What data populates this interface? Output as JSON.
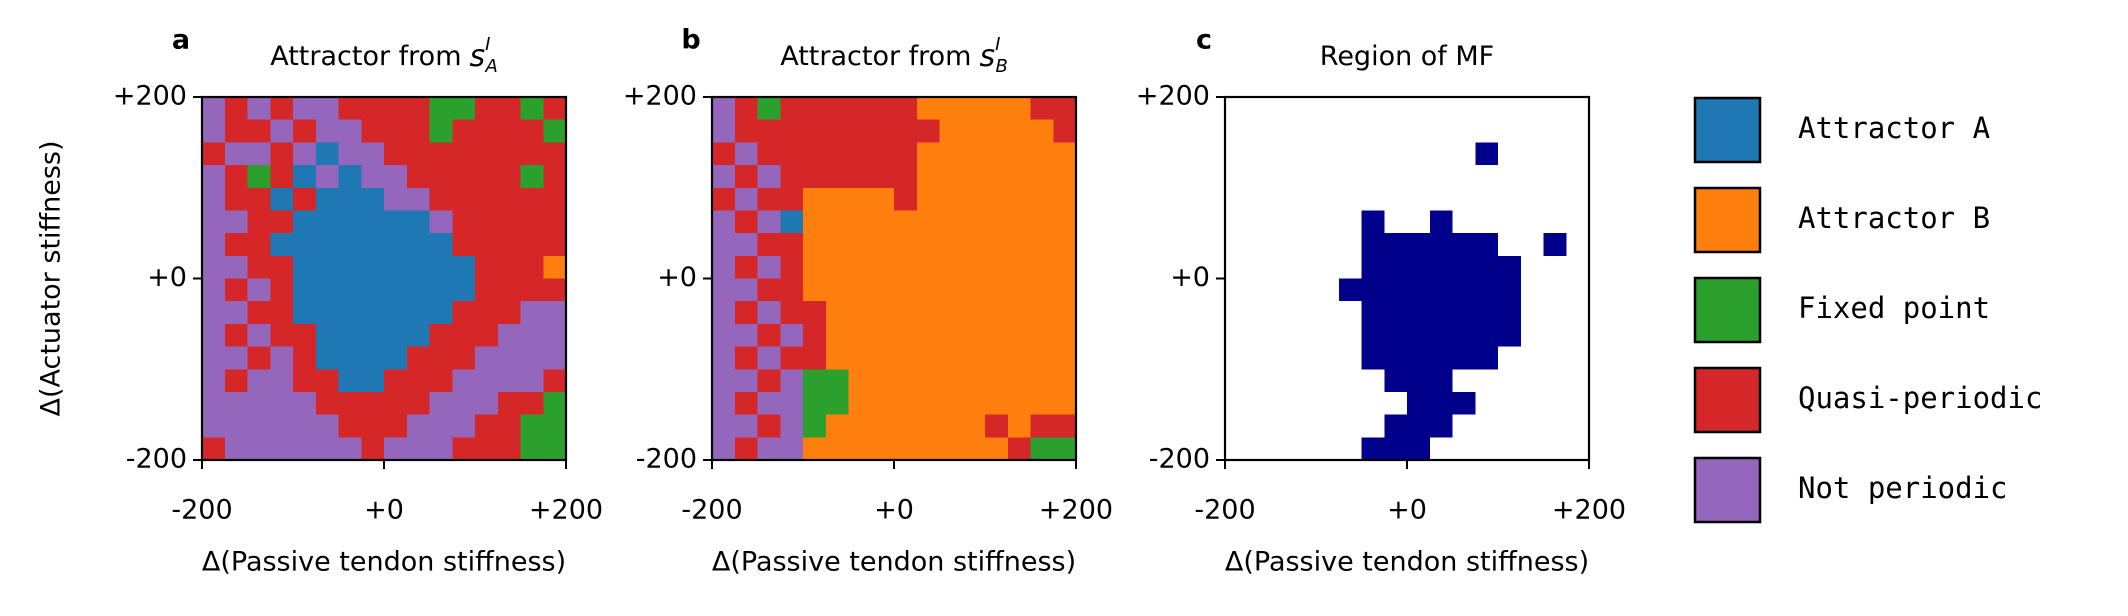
{
  "chart_data": [
    {
      "type": "heatmap",
      "panel_label": "a",
      "title": "Attractor from",
      "title_math": {
        "base": "s",
        "sup": "I",
        "sub": "A"
      },
      "xlabel": "Δ(Passive tendon stiffness)",
      "ylabel": "Δ(Actuator stiffness)",
      "xlim": [
        -200,
        200
      ],
      "ylim": [
        -200,
        200
      ],
      "xticks": [
        -200,
        {
          "value": 0,
          "label": "+0"
        },
        {
          "value": 200,
          "label": "+200"
        }
      ],
      "yticks": [
        -200,
        {
          "value": 0,
          "label": "+0"
        },
        {
          "value": 200,
          "label": "+200"
        }
      ],
      "colors": [
        "#1f77b4",
        "#ff7f0e",
        "#2ca02c",
        "#d62728",
        "#9467bd"
      ],
      "grid": [
        [
          4,
          3,
          4,
          3,
          4,
          4,
          3,
          3,
          3,
          3,
          2,
          2,
          3,
          3,
          2,
          3
        ],
        [
          4,
          3,
          3,
          4,
          3,
          4,
          4,
          3,
          3,
          3,
          2,
          3,
          3,
          3,
          3,
          2
        ],
        [
          3,
          4,
          4,
          3,
          4,
          0,
          4,
          4,
          3,
          3,
          3,
          3,
          3,
          3,
          3,
          3
        ],
        [
          4,
          3,
          2,
          3,
          0,
          4,
          0,
          4,
          4,
          3,
          3,
          3,
          3,
          3,
          2,
          3
        ],
        [
          4,
          3,
          3,
          0,
          3,
          0,
          0,
          0,
          4,
          4,
          3,
          3,
          3,
          3,
          3,
          3
        ],
        [
          4,
          4,
          3,
          3,
          0,
          0,
          0,
          0,
          0,
          0,
          4,
          3,
          3,
          3,
          3,
          3
        ],
        [
          4,
          3,
          3,
          0,
          0,
          0,
          0,
          0,
          0,
          0,
          0,
          3,
          3,
          3,
          3,
          3
        ],
        [
          4,
          4,
          3,
          3,
          0,
          0,
          0,
          0,
          0,
          0,
          0,
          0,
          3,
          3,
          3,
          1
        ],
        [
          4,
          3,
          4,
          3,
          0,
          0,
          0,
          0,
          0,
          0,
          0,
          0,
          3,
          3,
          3,
          3
        ],
        [
          4,
          4,
          3,
          3,
          0,
          0,
          0,
          0,
          0,
          0,
          0,
          3,
          3,
          3,
          4,
          4
        ],
        [
          4,
          3,
          4,
          3,
          3,
          0,
          0,
          0,
          0,
          0,
          3,
          3,
          3,
          4,
          4,
          4
        ],
        [
          4,
          4,
          3,
          4,
          3,
          0,
          0,
          0,
          0,
          3,
          3,
          3,
          4,
          4,
          4,
          4
        ],
        [
          4,
          3,
          4,
          4,
          3,
          3,
          0,
          0,
          3,
          3,
          3,
          4,
          4,
          4,
          4,
          3
        ],
        [
          4,
          4,
          4,
          4,
          4,
          3,
          3,
          3,
          3,
          3,
          4,
          4,
          4,
          3,
          3,
          2
        ],
        [
          4,
          4,
          4,
          4,
          4,
          4,
          3,
          3,
          3,
          4,
          4,
          4,
          3,
          3,
          2,
          2
        ],
        [
          3,
          4,
          4,
          4,
          4,
          4,
          4,
          3,
          4,
          4,
          4,
          3,
          3,
          3,
          2,
          2
        ]
      ]
    },
    {
      "type": "heatmap",
      "panel_label": "b",
      "title": "Attractor from",
      "title_math": {
        "base": "s",
        "sup": "I",
        "sub": "B"
      },
      "xlabel": "Δ(Passive tendon stiffness)",
      "xlim": [
        -200,
        200
      ],
      "ylim": [
        -200,
        200
      ],
      "xticks": [
        -200,
        {
          "value": 0,
          "label": "+0"
        },
        {
          "value": 200,
          "label": "+200"
        }
      ],
      "yticks": [
        -200,
        {
          "value": 0,
          "label": "+0"
        },
        {
          "value": 200,
          "label": "+200"
        }
      ],
      "colors": [
        "#1f77b4",
        "#ff7f0e",
        "#2ca02c",
        "#d62728",
        "#9467bd"
      ],
      "grid": [
        [
          4,
          3,
          2,
          3,
          3,
          3,
          3,
          3,
          3,
          1,
          1,
          1,
          1,
          1,
          3,
          3
        ],
        [
          4,
          3,
          3,
          3,
          3,
          3,
          3,
          3,
          3,
          3,
          1,
          1,
          1,
          1,
          1,
          3
        ],
        [
          3,
          4,
          3,
          3,
          3,
          3,
          3,
          3,
          3,
          1,
          1,
          1,
          1,
          1,
          1,
          1
        ],
        [
          4,
          3,
          4,
          3,
          3,
          3,
          3,
          3,
          3,
          1,
          1,
          1,
          1,
          1,
          1,
          1
        ],
        [
          3,
          4,
          3,
          3,
          1,
          1,
          1,
          1,
          3,
          1,
          1,
          1,
          1,
          1,
          1,
          1
        ],
        [
          4,
          3,
          4,
          0,
          1,
          1,
          1,
          1,
          1,
          1,
          1,
          1,
          1,
          1,
          1,
          1
        ],
        [
          4,
          4,
          3,
          3,
          1,
          1,
          1,
          1,
          1,
          1,
          1,
          1,
          1,
          1,
          1,
          1
        ],
        [
          4,
          3,
          4,
          3,
          1,
          1,
          1,
          1,
          1,
          1,
          1,
          1,
          1,
          1,
          1,
          1
        ],
        [
          4,
          4,
          3,
          3,
          1,
          1,
          1,
          1,
          1,
          1,
          1,
          1,
          1,
          1,
          1,
          1
        ],
        [
          4,
          3,
          4,
          3,
          3,
          1,
          1,
          1,
          1,
          1,
          1,
          1,
          1,
          1,
          1,
          1
        ],
        [
          4,
          4,
          3,
          4,
          3,
          1,
          1,
          1,
          1,
          1,
          1,
          1,
          1,
          1,
          1,
          1
        ],
        [
          4,
          3,
          4,
          3,
          3,
          1,
          1,
          1,
          1,
          1,
          1,
          1,
          1,
          1,
          1,
          1
        ],
        [
          4,
          4,
          3,
          4,
          2,
          2,
          1,
          1,
          1,
          1,
          1,
          1,
          1,
          1,
          1,
          1
        ],
        [
          4,
          3,
          4,
          4,
          2,
          2,
          1,
          1,
          1,
          1,
          1,
          1,
          1,
          1,
          1,
          1
        ],
        [
          4,
          4,
          3,
          4,
          2,
          1,
          1,
          1,
          1,
          1,
          1,
          1,
          3,
          1,
          3,
          3
        ],
        [
          4,
          3,
          4,
          4,
          1,
          1,
          1,
          1,
          1,
          1,
          1,
          1,
          1,
          3,
          2,
          2
        ]
      ]
    },
    {
      "type": "heatmap",
      "panel_label": "c",
      "title": "Region of MF",
      "xlabel": "Δ(Passive tendon stiffness)",
      "xlim": [
        -200,
        200
      ],
      "ylim": [
        -200,
        200
      ],
      "xticks": [
        -200,
        {
          "value": 0,
          "label": "+0"
        },
        {
          "value": 200,
          "label": "+200"
        }
      ],
      "yticks": [
        -200,
        {
          "value": 0,
          "label": "+0"
        },
        {
          "value": 200,
          "label": "+200"
        }
      ],
      "colors": [
        "#ffffff",
        "#00008b"
      ],
      "grid": [
        [
          0,
          0,
          0,
          0,
          0,
          0,
          0,
          0,
          0,
          0,
          0,
          0,
          0,
          0,
          0,
          0
        ],
        [
          0,
          0,
          0,
          0,
          0,
          0,
          0,
          0,
          0,
          0,
          0,
          0,
          0,
          0,
          0,
          0
        ],
        [
          0,
          0,
          0,
          0,
          0,
          0,
          0,
          0,
          0,
          0,
          0,
          1,
          0,
          0,
          0,
          0
        ],
        [
          0,
          0,
          0,
          0,
          0,
          0,
          0,
          0,
          0,
          0,
          0,
          0,
          0,
          0,
          0,
          0
        ],
        [
          0,
          0,
          0,
          0,
          0,
          0,
          0,
          0,
          0,
          0,
          0,
          0,
          0,
          0,
          0,
          0
        ],
        [
          0,
          0,
          0,
          0,
          0,
          0,
          1,
          0,
          0,
          1,
          0,
          0,
          0,
          0,
          0,
          0
        ],
        [
          0,
          0,
          0,
          0,
          0,
          0,
          1,
          1,
          1,
          1,
          1,
          1,
          0,
          0,
          1,
          0
        ],
        [
          0,
          0,
          0,
          0,
          0,
          0,
          1,
          1,
          1,
          1,
          1,
          1,
          1,
          0,
          0,
          0
        ],
        [
          0,
          0,
          0,
          0,
          0,
          1,
          1,
          1,
          1,
          1,
          1,
          1,
          1,
          0,
          0,
          0
        ],
        [
          0,
          0,
          0,
          0,
          0,
          0,
          1,
          1,
          1,
          1,
          1,
          1,
          1,
          0,
          0,
          0
        ],
        [
          0,
          0,
          0,
          0,
          0,
          0,
          1,
          1,
          1,
          1,
          1,
          1,
          1,
          0,
          0,
          0
        ],
        [
          0,
          0,
          0,
          0,
          0,
          0,
          1,
          1,
          1,
          1,
          1,
          1,
          0,
          0,
          0,
          0
        ],
        [
          0,
          0,
          0,
          0,
          0,
          0,
          0,
          1,
          1,
          1,
          0,
          0,
          0,
          0,
          0,
          0
        ],
        [
          0,
          0,
          0,
          0,
          0,
          0,
          0,
          0,
          1,
          1,
          1,
          0,
          0,
          0,
          0,
          0
        ],
        [
          0,
          0,
          0,
          0,
          0,
          0,
          0,
          1,
          1,
          1,
          0,
          0,
          0,
          0,
          0,
          0
        ],
        [
          0,
          0,
          0,
          0,
          0,
          0,
          1,
          1,
          1,
          0,
          0,
          0,
          0,
          0,
          0,
          0
        ]
      ]
    }
  ],
  "legend": {
    "entries": [
      {
        "name": "Attractor A",
        "color": "#1f77b4"
      },
      {
        "name": "Attractor B",
        "color": "#ff7f0e"
      },
      {
        "name": "Fixed point",
        "color": "#2ca02c"
      },
      {
        "name": "Quasi-periodic",
        "color": "#d62728"
      },
      {
        "name": "Not periodic",
        "color": "#9467bd"
      }
    ]
  }
}
